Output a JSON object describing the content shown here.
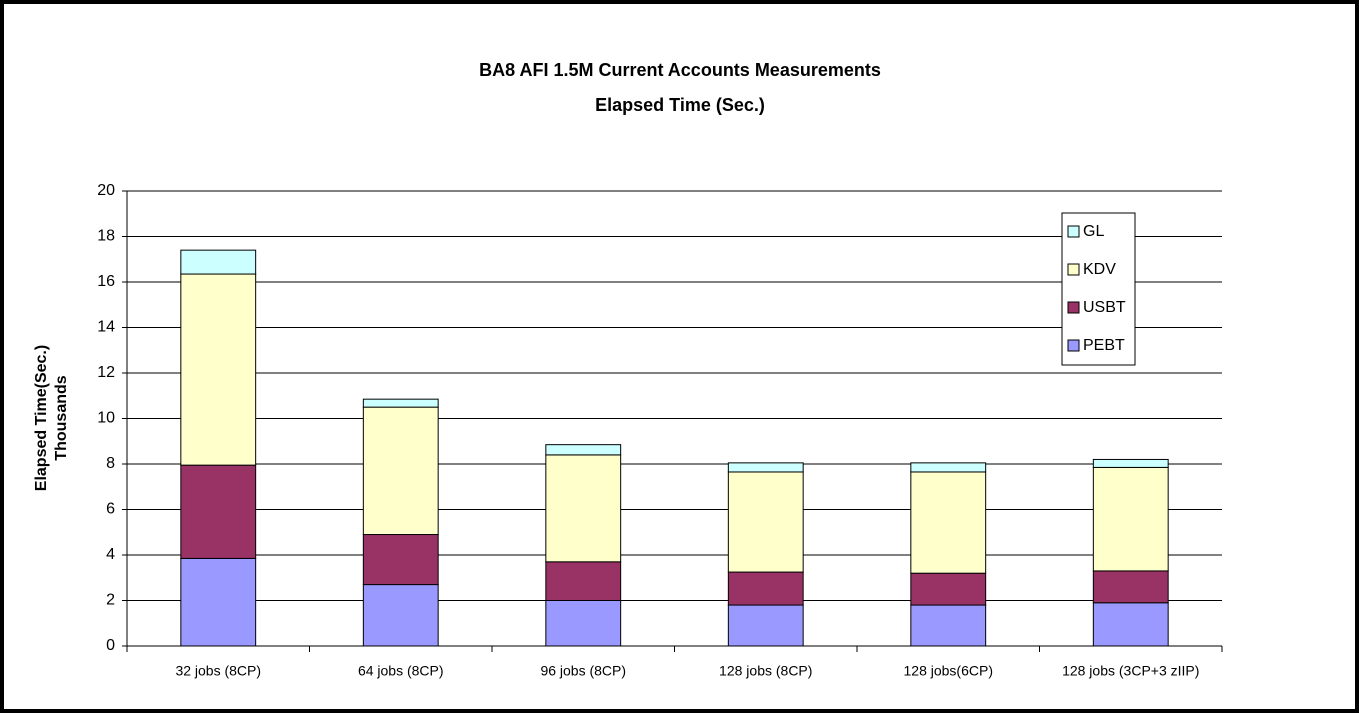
{
  "chart_data": {
    "type": "stacked_bar",
    "title": "BA8 AFI 1.5M Current Accounts Measurements",
    "subtitle": "Elapsed Time (Sec.)",
    "ylabel": "Elapsed Time(Sec.)",
    "yunit": "Thousands",
    "categories": [
      "32 jobs (8CP)",
      "64 jobs (8CP)",
      "96 jobs (8CP)",
      "128 jobs (8CP)",
      "128 jobs(6CP)",
      "128 jobs  (3CP+3 zIIP)"
    ],
    "series": [
      {
        "name": "PEBT",
        "color": "#9999ff",
        "values": [
          3.85,
          2.7,
          2.0,
          1.8,
          1.8,
          1.9
        ]
      },
      {
        "name": "USBT",
        "color": "#993366",
        "values": [
          4.1,
          2.2,
          1.7,
          1.45,
          1.4,
          1.4
        ]
      },
      {
        "name": "KDV",
        "color": "#ffffcc",
        "values": [
          8.4,
          5.6,
          4.7,
          4.4,
          4.45,
          4.55
        ]
      },
      {
        "name": "GL",
        "color": "#ccffff",
        "values": [
          1.05,
          0.35,
          0.45,
          0.4,
          0.4,
          0.35
        ]
      }
    ],
    "ylim": [
      0,
      20
    ],
    "yticks": [
      0,
      2,
      4,
      6,
      8,
      10,
      12,
      14,
      16,
      18,
      20
    ],
    "grid": true,
    "legend": "right"
  }
}
